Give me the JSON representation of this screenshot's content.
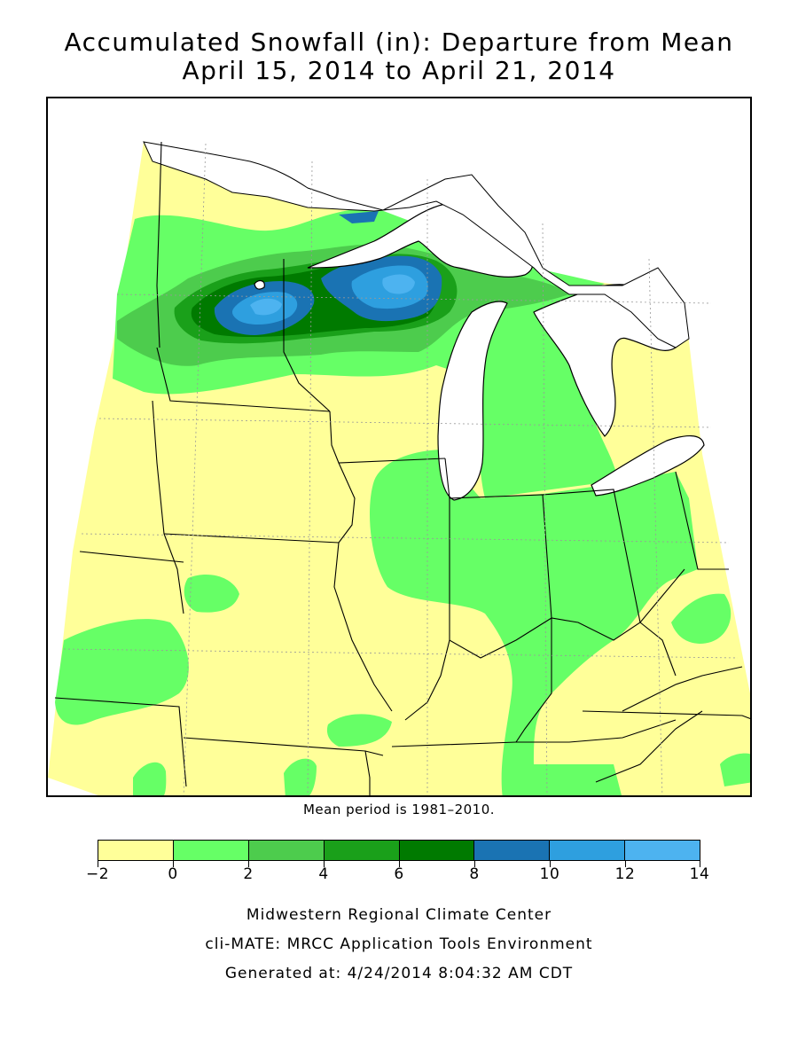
{
  "title_line1": "Accumulated Snowfall (in): Departure from Mean",
  "title_line2": "April 15, 2014 to April 21, 2014",
  "mean_note": "Mean period is 1981–2010.",
  "legend": {
    "bins": [
      {
        "from": -2,
        "to": 0,
        "color": "#ffff99"
      },
      {
        "from": 0,
        "to": 2,
        "color": "#66ff66"
      },
      {
        "from": 2,
        "to": 4,
        "color": "#4dcc4d"
      },
      {
        "from": 4,
        "to": 6,
        "color": "#1aa01a"
      },
      {
        "from": 6,
        "to": 8,
        "color": "#007a00"
      },
      {
        "from": 8,
        "to": 10,
        "color": "#1a73b3"
      },
      {
        "from": 10,
        "to": 12,
        "color": "#2e9fdf"
      },
      {
        "from": 12,
        "to": 14,
        "color": "#4db3f0"
      }
    ],
    "tick_labels": [
      "−2",
      "0",
      "2",
      "4",
      "6",
      "8",
      "10",
      "12",
      "14"
    ]
  },
  "credits": {
    "line1": "Midwestern Regional Climate Center",
    "line2": "cli-MATE: MRCC Application Tools Environment",
    "line3": "Generated at: 4/24/2014 8:04:32 AM CDT"
  },
  "map": {
    "colors": {
      "water": "#ffffff",
      "outline": "#000000",
      "county_lines": "#999999"
    }
  }
}
